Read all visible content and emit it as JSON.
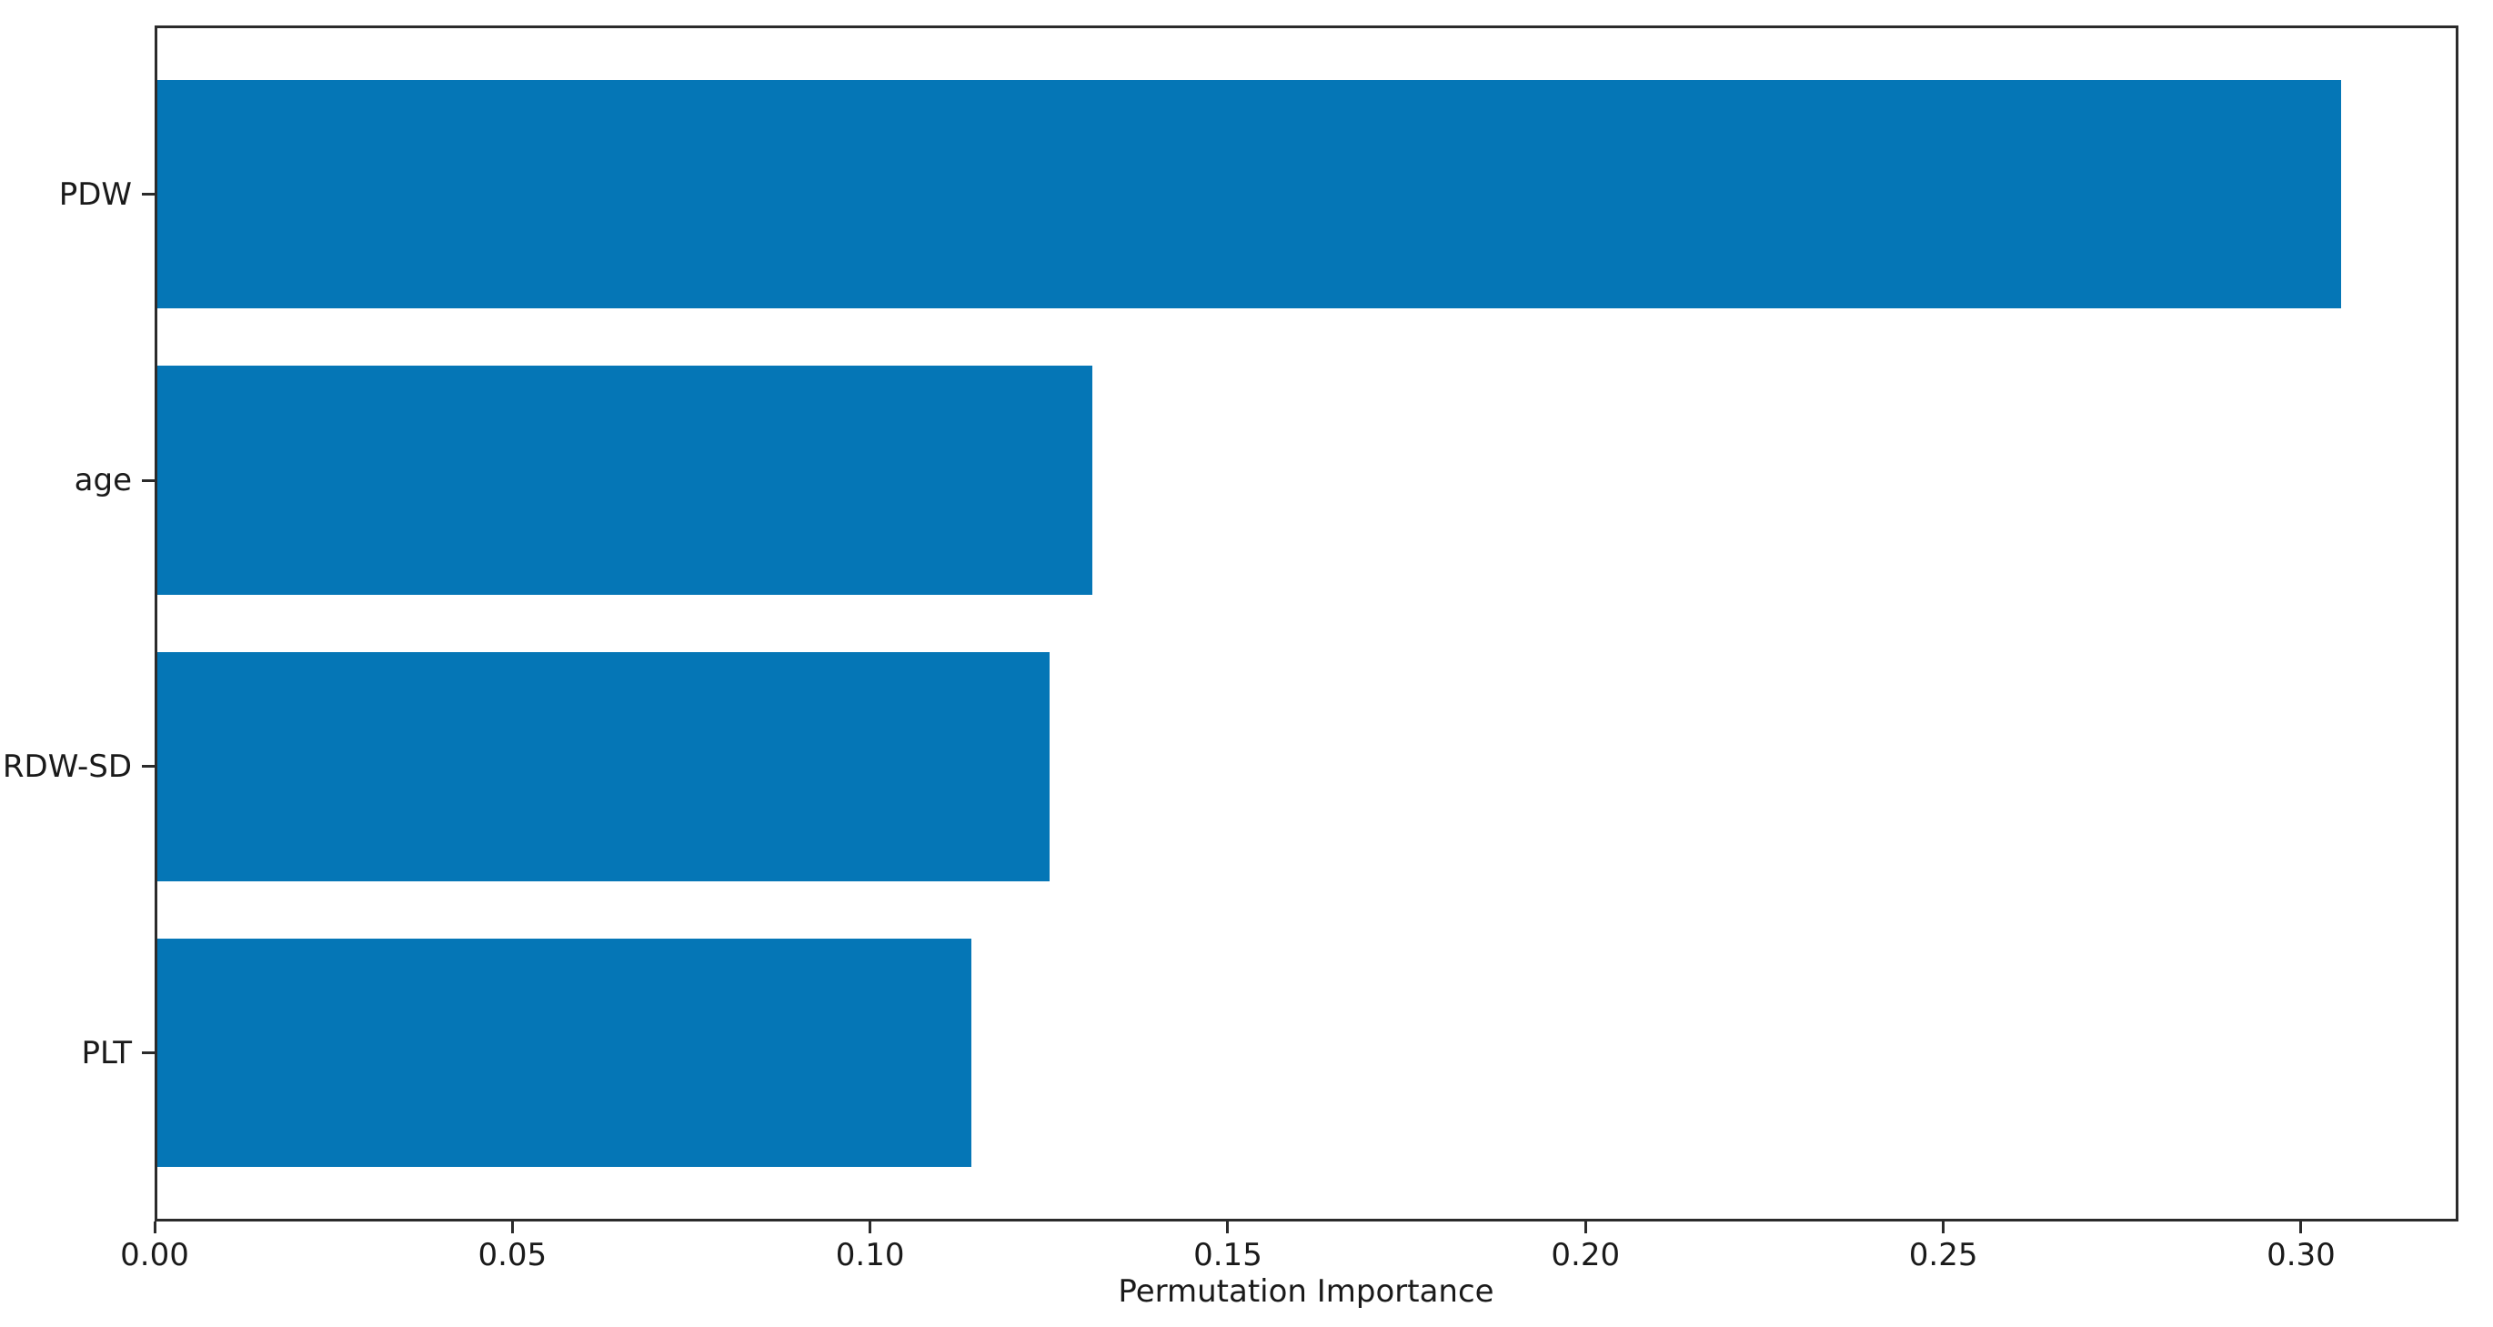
{
  "figure": {
    "background": "#ffffff",
    "spine_color": "#2b2b2b",
    "text_color": "#1a1a1a"
  },
  "chart_data": {
    "type": "bar",
    "orientation": "horizontal",
    "categories": [
      "PDW",
      "age",
      "RDW-SD",
      "PLT"
    ],
    "values": [
      0.306,
      0.131,
      0.125,
      0.114
    ],
    "bar_color": "#0576b6",
    "xlabel": "Permutation Importance",
    "ylabel": "",
    "xticks": [
      0.0,
      0.05,
      0.1,
      0.15,
      0.2,
      0.25,
      0.3
    ],
    "xtick_labels": [
      "0.00",
      "0.05",
      "0.10",
      "0.15",
      "0.20",
      "0.25",
      "0.30"
    ],
    "xlim": [
      0,
      0.322
    ],
    "grid": false,
    "legend": "none",
    "bar_height_fraction": 0.8
  }
}
